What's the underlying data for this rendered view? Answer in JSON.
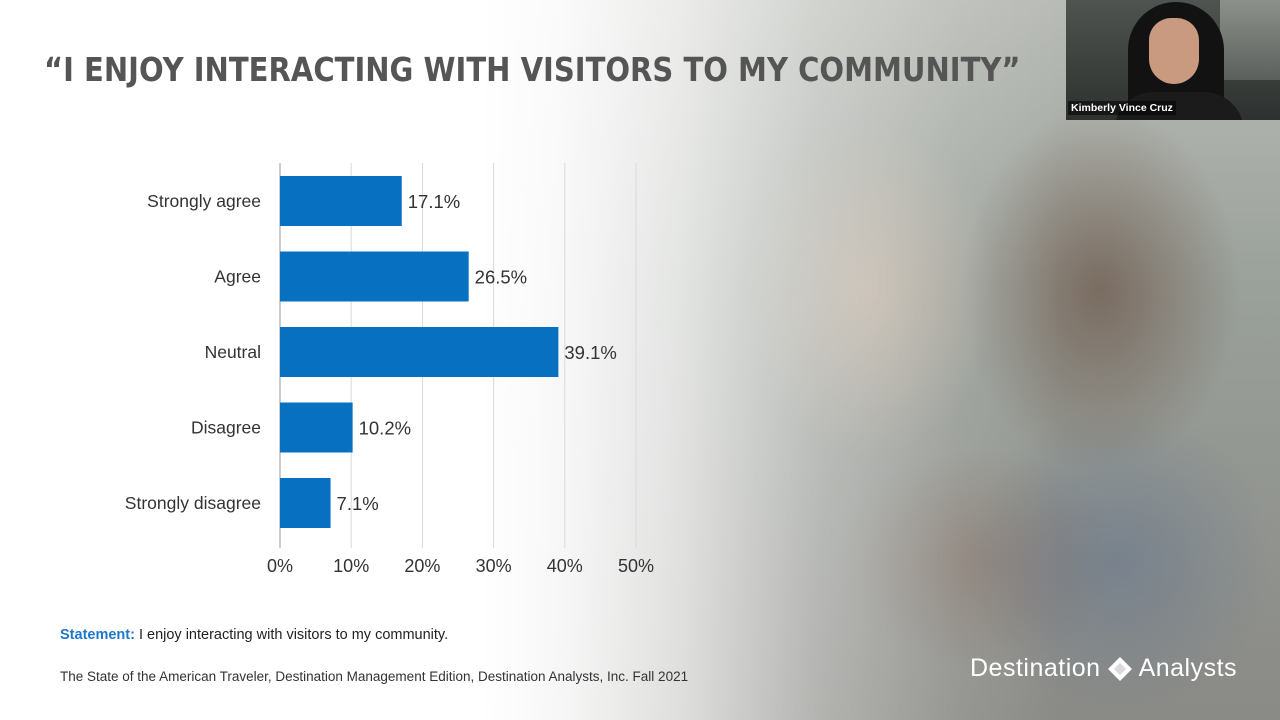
{
  "slide": {
    "title": "“I ENJOY INTERACTING WITH VISITORS TO MY COMMUNITY”",
    "statement_label": "Statement:",
    "statement_text": " I enjoy interacting with visitors to my community.",
    "source": "The State of the American Traveler, Destination Management Edition, Destination Analysts, Inc.  Fall 2021",
    "logo_left": "Destination",
    "logo_right": "Analysts"
  },
  "webcam": {
    "participant_name": "Kimberly Vince Cruz"
  },
  "colors": {
    "bar": "#0870c0",
    "title": "#555555",
    "statement_label": "#1f77c8"
  },
  "chart_data": {
    "type": "bar",
    "orientation": "horizontal",
    "categories": [
      "Strongly agree",
      "Agree",
      "Neutral",
      "Disagree",
      "Strongly disagree"
    ],
    "values": [
      17.1,
      26.5,
      39.1,
      10.2,
      7.1
    ],
    "value_labels": [
      "17.1%",
      "26.5%",
      "39.1%",
      "10.2%",
      "7.1%"
    ],
    "x_ticks": [
      0,
      10,
      20,
      30,
      40,
      50
    ],
    "x_tick_labels": [
      "0%",
      "10%",
      "20%",
      "30%",
      "40%",
      "50%"
    ],
    "xlim": [
      0,
      50
    ],
    "grid": true,
    "title": "",
    "xlabel": "",
    "ylabel": ""
  }
}
